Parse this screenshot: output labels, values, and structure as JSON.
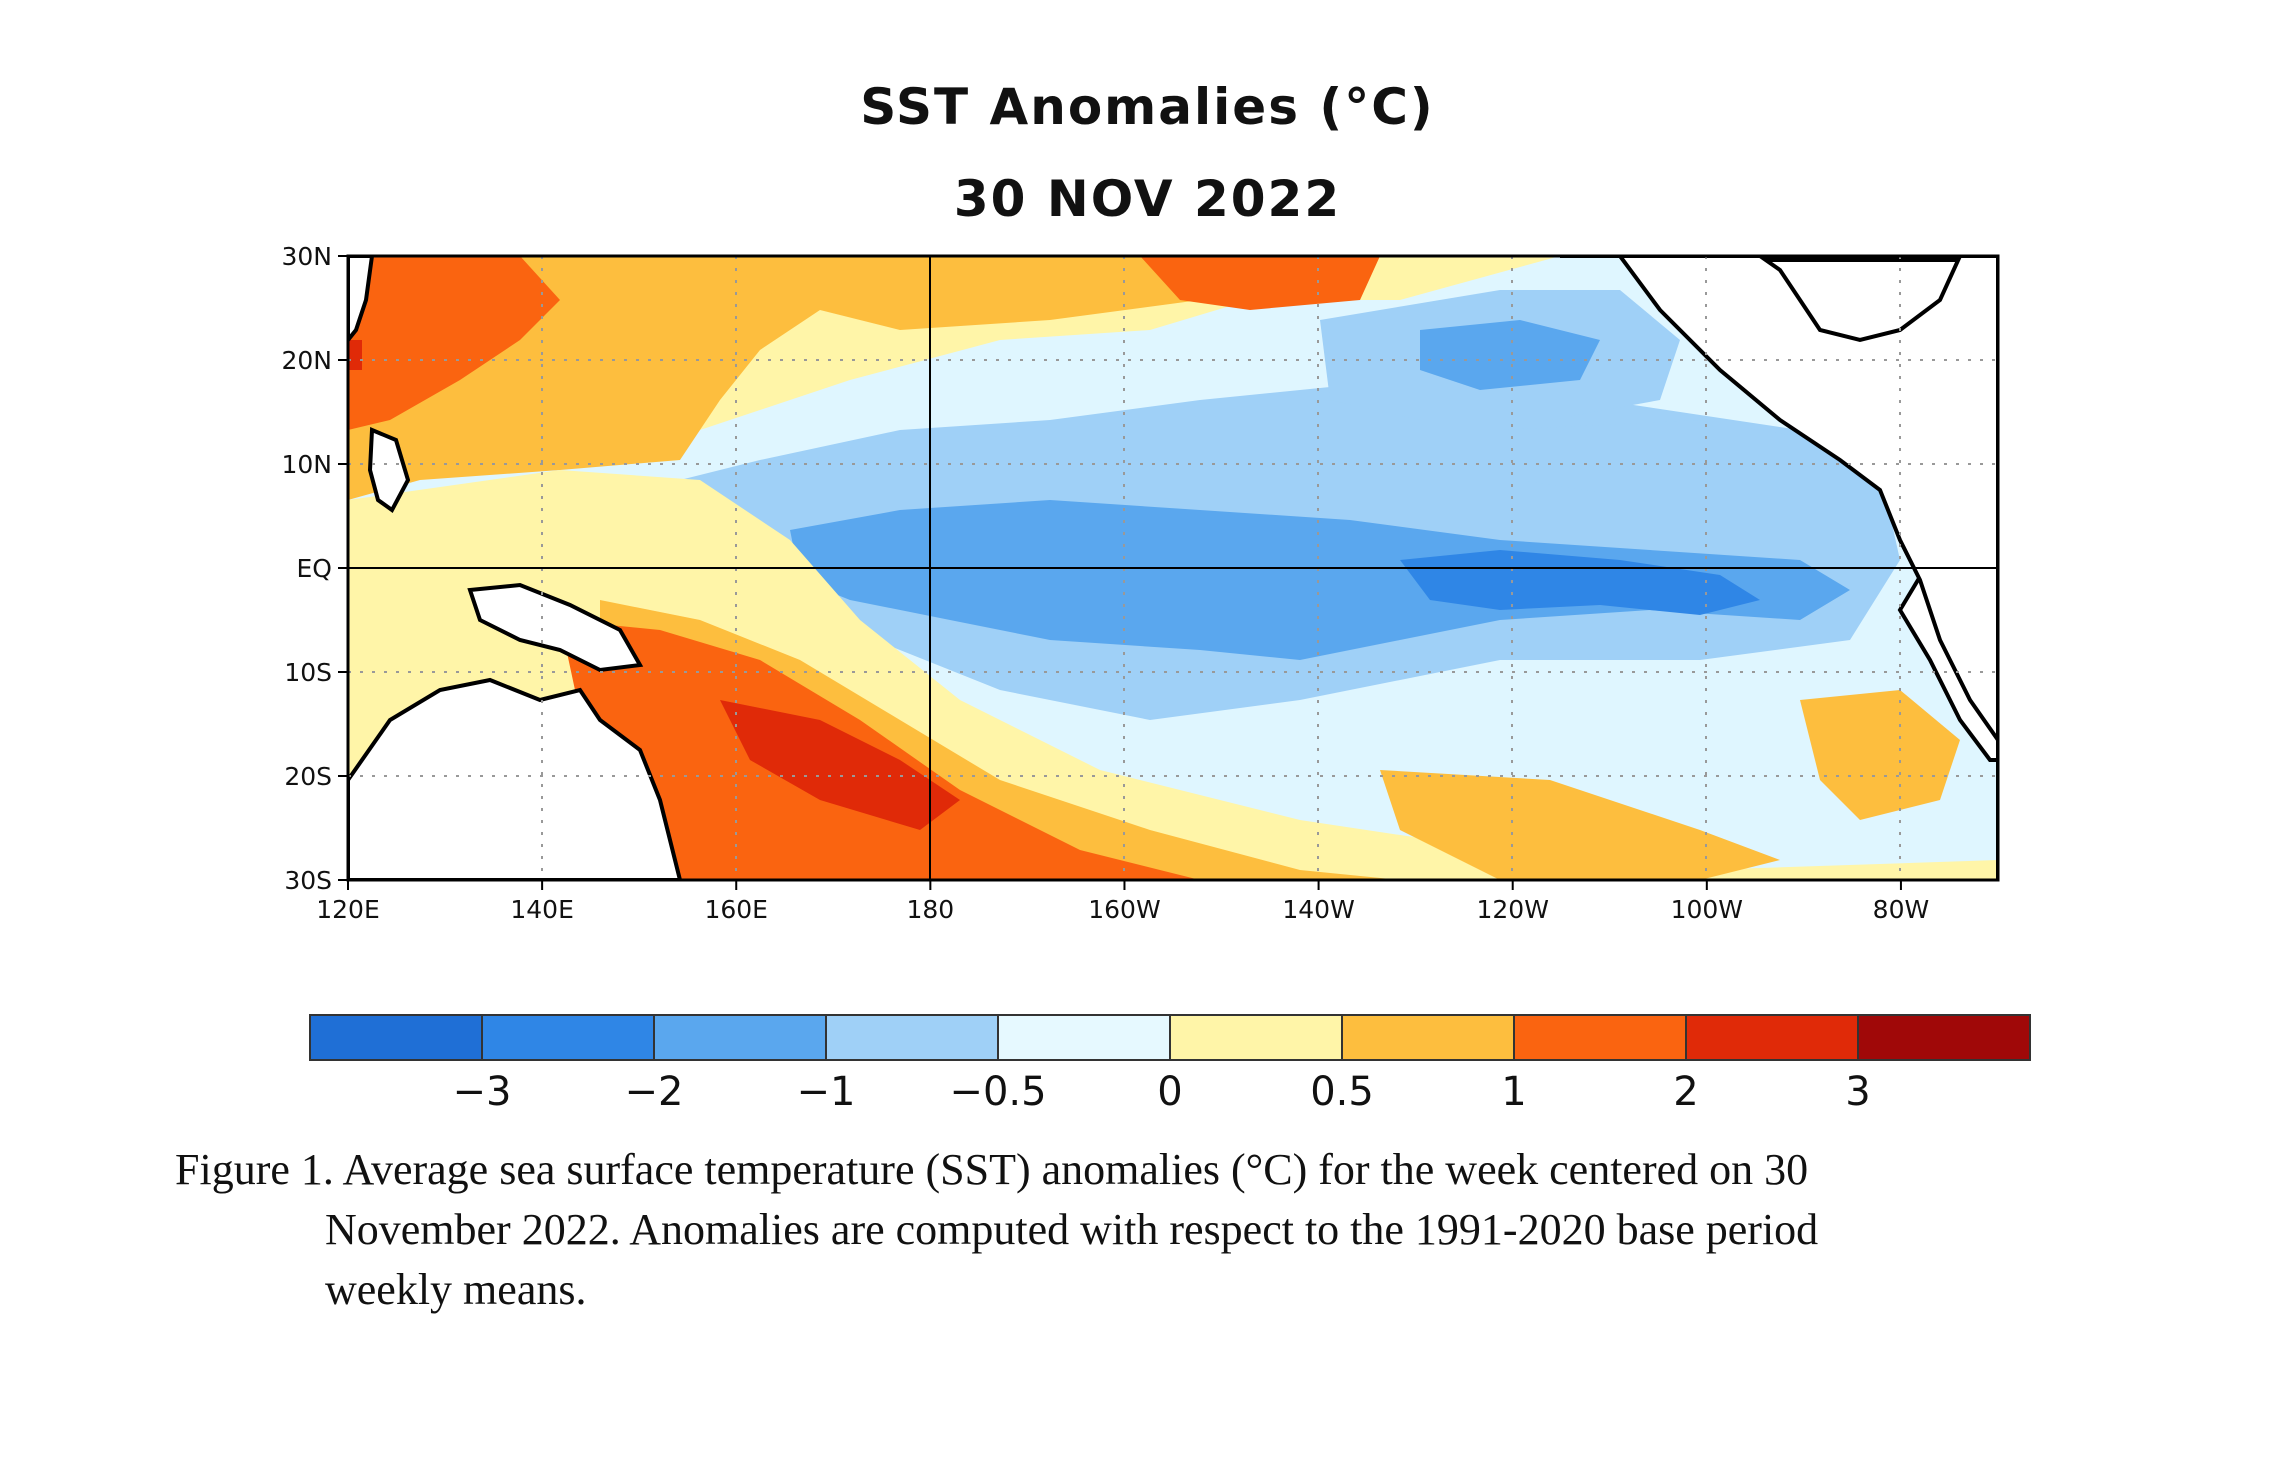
{
  "figure": {
    "title": "SST Anomalies (°C)",
    "subtitle": "30 NOV 2022"
  },
  "map": {
    "lat_labels": [
      "30N",
      "20N",
      "10N",
      "EQ",
      "10S",
      "20S",
      "30S"
    ],
    "lon_labels": [
      "120E",
      "140E",
      "160E",
      "180",
      "160W",
      "140W",
      "120W",
      "100W",
      "80W"
    ],
    "extent": {
      "lon_min": 120,
      "lon_max": 290,
      "lat_min": -30,
      "lat_max": 30
    },
    "grid": "dotted, every 10° latitude and 20° longitude; solid lines at 180 and the Equator",
    "colors": {
      "strong_cool": "#1f6fd6",
      "cool": "#2f86e6",
      "moderate_cool": "#5aa7ee",
      "weak_cool": "#9fd0f7",
      "slight_cool": "#dff6ff",
      "slight_warm": "#fff5a8",
      "weak_warm": "#fdbe3e",
      "warm": "#fa6410",
      "strong_warm": "#e02a08",
      "extreme_warm": "#a00808",
      "land": "#ffffff"
    }
  },
  "colorbar": {
    "ticks": [
      "−3",
      "−2",
      "−1",
      "−0.5",
      "0",
      "0.5",
      "1",
      "2",
      "3"
    ],
    "bins": [
      {
        "color": "#1f6fd6"
      },
      {
        "color": "#2f86e6"
      },
      {
        "color": "#5aa7ee"
      },
      {
        "color": "#9fd0f7"
      },
      {
        "color": "#e6f9ff"
      },
      {
        "color": "#fff5a8"
      },
      {
        "color": "#fdbe3e"
      },
      {
        "color": "#fa6410"
      },
      {
        "color": "#e02a08"
      },
      {
        "color": "#a00808"
      }
    ]
  },
  "caption": {
    "line1": "Figure 1. Average sea surface temperature (SST) anomalies (°C) for the week centered on 30",
    "line2": "November 2022.  Anomalies are computed with respect to the 1991-2020 base period",
    "line3": "weekly means."
  }
}
